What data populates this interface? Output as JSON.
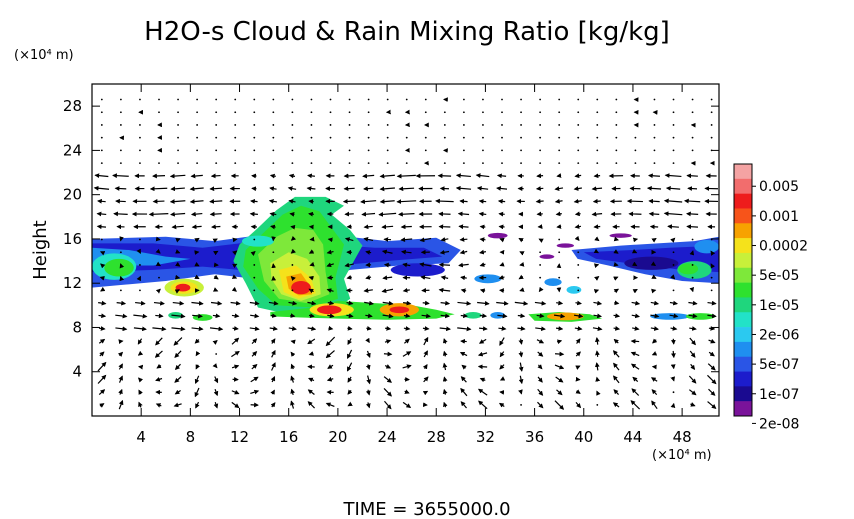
{
  "chart_data": {
    "type": "heatmap",
    "title": "H2O-s Cloud & Rain Mixing Ratio [kg/kg]",
    "ylabel": "Height",
    "y_unit": "(×10⁴ m)",
    "x_unit": "(×10⁴ m)",
    "xlim": [
      0,
      51
    ],
    "ylim": [
      0,
      30
    ],
    "x_ticks": [
      4,
      8,
      12,
      16,
      20,
      24,
      28,
      32,
      36,
      40,
      44,
      48
    ],
    "y_ticks": [
      4,
      8,
      12,
      16,
      20,
      24,
      28
    ],
    "overlay": "wind vectors",
    "time_label": "TIME = 3655000.0",
    "colorbar": {
      "labels": [
        "0.005",
        "0.001",
        "0.0002",
        "5e-05",
        "1e-05",
        "2e-06",
        "5e-07",
        "1e-07",
        "2e-08"
      ],
      "colors": [
        "#f4a3a3",
        "#f26d6d",
        "#ee1c1c",
        "#f7541a",
        "#f7a200",
        "#f5e21b",
        "#c8f03a",
        "#7ee83a",
        "#2ee12e",
        "#1fd67d",
        "#22e2c8",
        "#2bc9f0",
        "#1f8ff0",
        "#2a55e6",
        "#1c1ccc",
        "#1a0a90",
        "#7a139a"
      ]
    },
    "regions": [
      {
        "name": "upper-anvil-west",
        "x": [
          0,
          30
        ],
        "y": [
          12,
          16
        ],
        "level": "1e-07"
      },
      {
        "name": "upper-anvil-east",
        "x": [
          39,
          51
        ],
        "y": [
          12,
          15.5
        ],
        "level": "5e-07"
      },
      {
        "name": "convective-core",
        "x": [
          12,
          21
        ],
        "y": [
          8.5,
          19.5
        ],
        "level": "1e-05"
      },
      {
        "name": "core-max",
        "x": [
          15,
          19
        ],
        "y": [
          9.5,
          13
        ],
        "level": "0.001"
      },
      {
        "name": "west-patch-max",
        "x": [
          6,
          9
        ],
        "y": [
          11,
          12.5
        ],
        "level": "0.0002"
      },
      {
        "name": "mid-level-band",
        "x": [
          16,
          30
        ],
        "y": [
          8.7,
          10
        ],
        "level": "5e-05"
      },
      {
        "name": "mid-level-east",
        "x": [
          36,
          41
        ],
        "y": [
          8.5,
          9.3
        ],
        "level": "1e-05"
      }
    ]
  }
}
